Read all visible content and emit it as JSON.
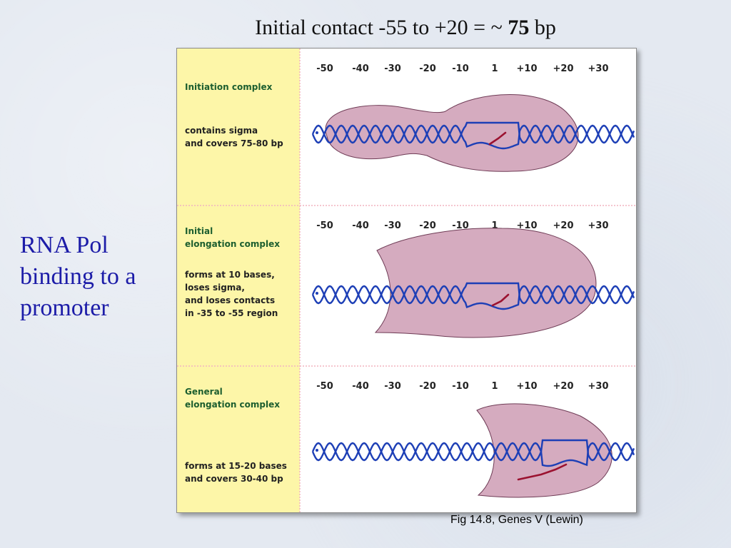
{
  "title": {
    "prefix": "Initial contact -55 to +20 = ~ ",
    "bold": "75",
    "suffix": " bp"
  },
  "side_label": {
    "lines": [
      "RNA Pol",
      "binding to a",
      "promoter"
    ],
    "color": "#1c1ca8"
  },
  "caption": "Fig 14.8, Genes V  (Lewin)",
  "diagram": {
    "positions": [
      "-50",
      "-40",
      "-30",
      "-20",
      "-10",
      "1",
      "+10",
      "+20",
      "+30"
    ],
    "colors": {
      "panel_bg": "#fdf6a8",
      "polymerase": "#c58aa6",
      "dna": "#1d3fb6",
      "rna": "#9b1230",
      "label_green": "#1c5e2f"
    },
    "panels": [
      {
        "heading": [
          "Initiation complex"
        ],
        "description": [
          "contains sigma",
          "and covers 75-80 bp"
        ]
      },
      {
        "heading": [
          "Initial",
          "elongation complex"
        ],
        "description": [
          "forms at 10 bases,",
          "loses sigma,",
          "and loses contacts",
          "in -35 to -55 region"
        ]
      },
      {
        "heading": [
          "General",
          "elongation complex"
        ],
        "description": [
          "forms at 15-20 bases",
          "and covers 30-40 bp"
        ]
      }
    ]
  }
}
